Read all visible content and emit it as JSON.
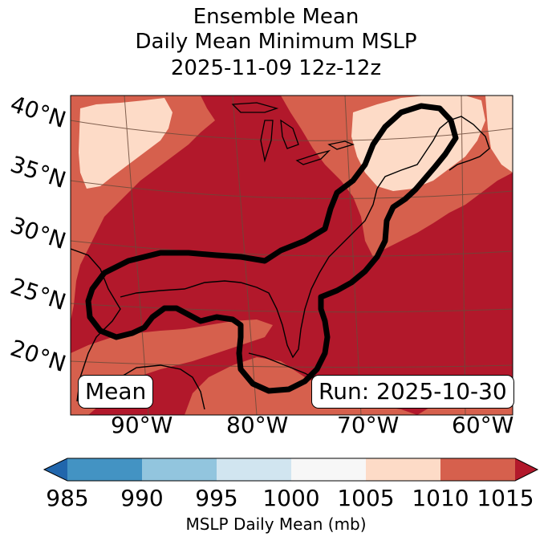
{
  "title_lines": [
    "Ensemble Mean",
    "Daily Mean Minimum MSLP",
    "2025-11-09 12z-12z"
  ],
  "lat_labels": [
    "40°N",
    "35°N",
    "30°N",
    "25°N",
    "20°N"
  ],
  "lon_labels": [
    "90°W",
    "80°W",
    "70°W",
    "60°W"
  ],
  "mean_label": "Mean",
  "run_label": "Run: 2025-10-30",
  "colorbar": {
    "title": "MSLP Daily Mean (mb)",
    "ticks": [
      "985",
      "990",
      "995",
      "1000",
      "1005",
      "1010",
      "1015"
    ],
    "colors": [
      "#2166ac",
      "#4393c3",
      "#92c5de",
      "#d1e5f0",
      "#f7f7f7",
      "#fddbc7",
      "#d6604d",
      "#b2182b"
    ]
  },
  "map_colors": {
    "band_1005_1010": "#fddbc7",
    "band_1010_1015": "#d6604d",
    "band_above_1015": "#b2182b",
    "contour": "#000000",
    "coast": "#000000",
    "grid": "#6b4a3a"
  }
}
